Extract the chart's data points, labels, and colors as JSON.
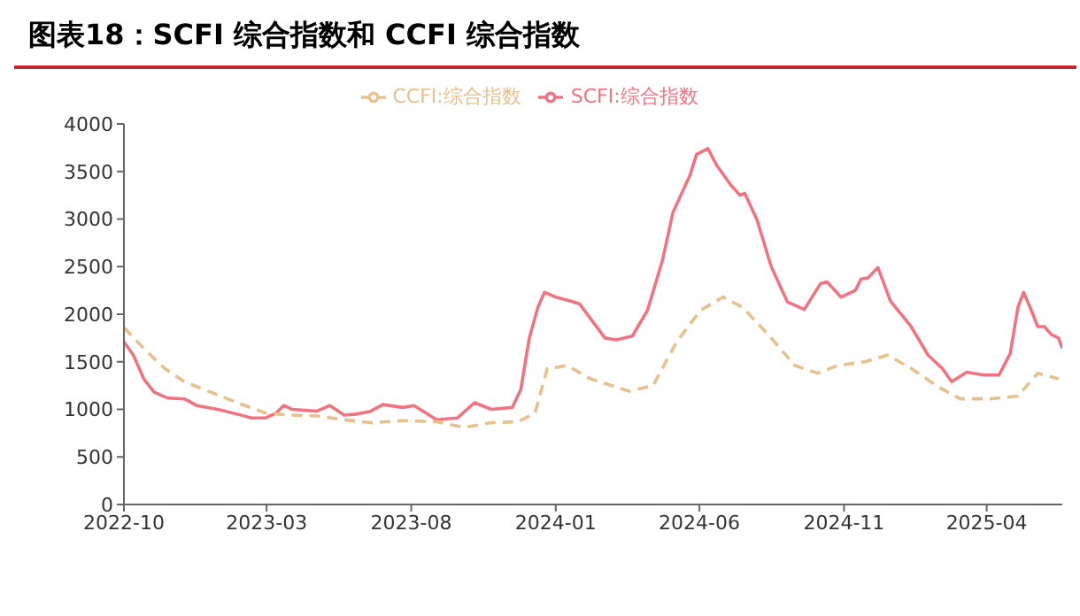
{
  "chart_data": {
    "type": "line",
    "title": "图表18：SCFI 综合指数和 CCFI 综合指数",
    "xlim": [
      "2022-10-01",
      "2025-06-20"
    ],
    "xticks": [
      "2022-10",
      "2023-03",
      "2023-08",
      "2024-01",
      "2024-06",
      "2024-11",
      "2025-04"
    ],
    "ylim": [
      0,
      4000
    ],
    "yticks": [
      0,
      500,
      1000,
      1500,
      2000,
      2500,
      3000,
      3500,
      4000
    ],
    "grid": false,
    "legend": "top",
    "marker": "none",
    "series": [
      {
        "name": "SCFI:综合指数",
        "color": "#f07480",
        "line_style": "solid",
        "x": [
          "2022-10-01",
          "2022-10-11",
          "2022-10-22",
          "2022-11-02",
          "2022-11-16",
          "2022-12-04",
          "2022-12-17",
          "2023-01-08",
          "2023-01-29",
          "2023-02-13",
          "2023-02-28",
          "2023-03-11",
          "2023-03-19",
          "2023-03-28",
          "2023-04-23",
          "2023-05-07",
          "2023-05-22",
          "2023-06-04",
          "2023-06-19",
          "2023-07-02",
          "2023-07-23",
          "2023-08-04",
          "2023-08-28",
          "2023-09-19",
          "2023-10-07",
          "2023-10-25",
          "2023-11-16",
          "2023-11-25",
          "2023-12-04",
          "2023-12-13",
          "2023-12-20",
          "2024-01-01",
          "2024-01-16",
          "2024-01-26",
          "2024-02-22",
          "2024-03-05",
          "2024-03-22",
          "2024-04-07",
          "2024-04-23",
          "2024-05-04",
          "2024-05-22",
          "2024-05-29",
          "2024-06-10",
          "2024-06-19",
          "2024-07-04",
          "2024-07-14",
          "2024-07-19",
          "2024-08-01",
          "2024-08-16",
          "2024-09-02",
          "2024-09-20",
          "2024-10-07",
          "2024-10-14",
          "2024-10-29",
          "2024-11-13",
          "2024-11-19",
          "2024-11-26",
          "2024-12-07",
          "2024-12-20",
          "2025-01-11",
          "2025-01-29",
          "2025-02-13",
          "2025-02-23",
          "2025-03-11",
          "2025-03-29",
          "2025-04-14",
          "2025-04-26",
          "2025-05-04",
          "2025-05-10",
          "2025-05-17",
          "2025-05-25",
          "2025-06-01",
          "2025-06-08",
          "2025-06-16",
          "2025-06-20"
        ],
        "values": [
          1710,
          1570,
          1320,
          1180,
          1120,
          1110,
          1040,
          1000,
          950,
          910,
          910,
          960,
          1040,
          1000,
          980,
          1040,
          940,
          950,
          980,
          1050,
          1020,
          1040,
          890,
          910,
          1070,
          1000,
          1020,
          1210,
          1750,
          2070,
          2230,
          2180,
          2140,
          2110,
          1750,
          1730,
          1770,
          2040,
          2570,
          3070,
          3460,
          3680,
          3740,
          3570,
          3360,
          3250,
          3270,
          2990,
          2500,
          2130,
          2050,
          2320,
          2340,
          2180,
          2250,
          2370,
          2380,
          2490,
          2140,
          1870,
          1570,
          1430,
          1290,
          1390,
          1360,
          1360,
          1590,
          2070,
          2230,
          2070,
          1870,
          1870,
          1790,
          1750,
          1640
        ]
      },
      {
        "name": "CCFI:综合指数",
        "color": "#e8c08c",
        "line_style": "dashed",
        "x": [
          "2022-10-01",
          "2022-10-22",
          "2022-11-13",
          "2022-12-04",
          "2023-01-01",
          "2023-01-29",
          "2023-02-28",
          "2023-03-25",
          "2023-04-23",
          "2023-05-22",
          "2023-06-19",
          "2023-07-23",
          "2023-08-28",
          "2023-09-26",
          "2023-10-25",
          "2023-11-22",
          "2023-12-10",
          "2023-12-23",
          "2024-01-01",
          "2024-01-13",
          "2024-02-07",
          "2024-03-19",
          "2024-04-13",
          "2024-05-08",
          "2024-06-02",
          "2024-06-26",
          "2024-07-17",
          "2024-08-16",
          "2024-09-10",
          "2024-10-04",
          "2024-10-25",
          "2024-11-23",
          "2024-12-17",
          "2025-01-11",
          "2025-02-10",
          "2025-03-04",
          "2025-04-05",
          "2025-05-04",
          "2025-05-25",
          "2025-06-16"
        ],
        "values": [
          1860,
          1640,
          1430,
          1290,
          1180,
          1070,
          960,
          940,
          930,
          890,
          860,
          880,
          870,
          810,
          860,
          870,
          960,
          1430,
          1440,
          1460,
          1320,
          1190,
          1250,
          1710,
          2040,
          2180,
          2070,
          1750,
          1460,
          1380,
          1460,
          1500,
          1570,
          1430,
          1230,
          1110,
          1110,
          1140,
          1380,
          1320
        ]
      }
    ]
  }
}
